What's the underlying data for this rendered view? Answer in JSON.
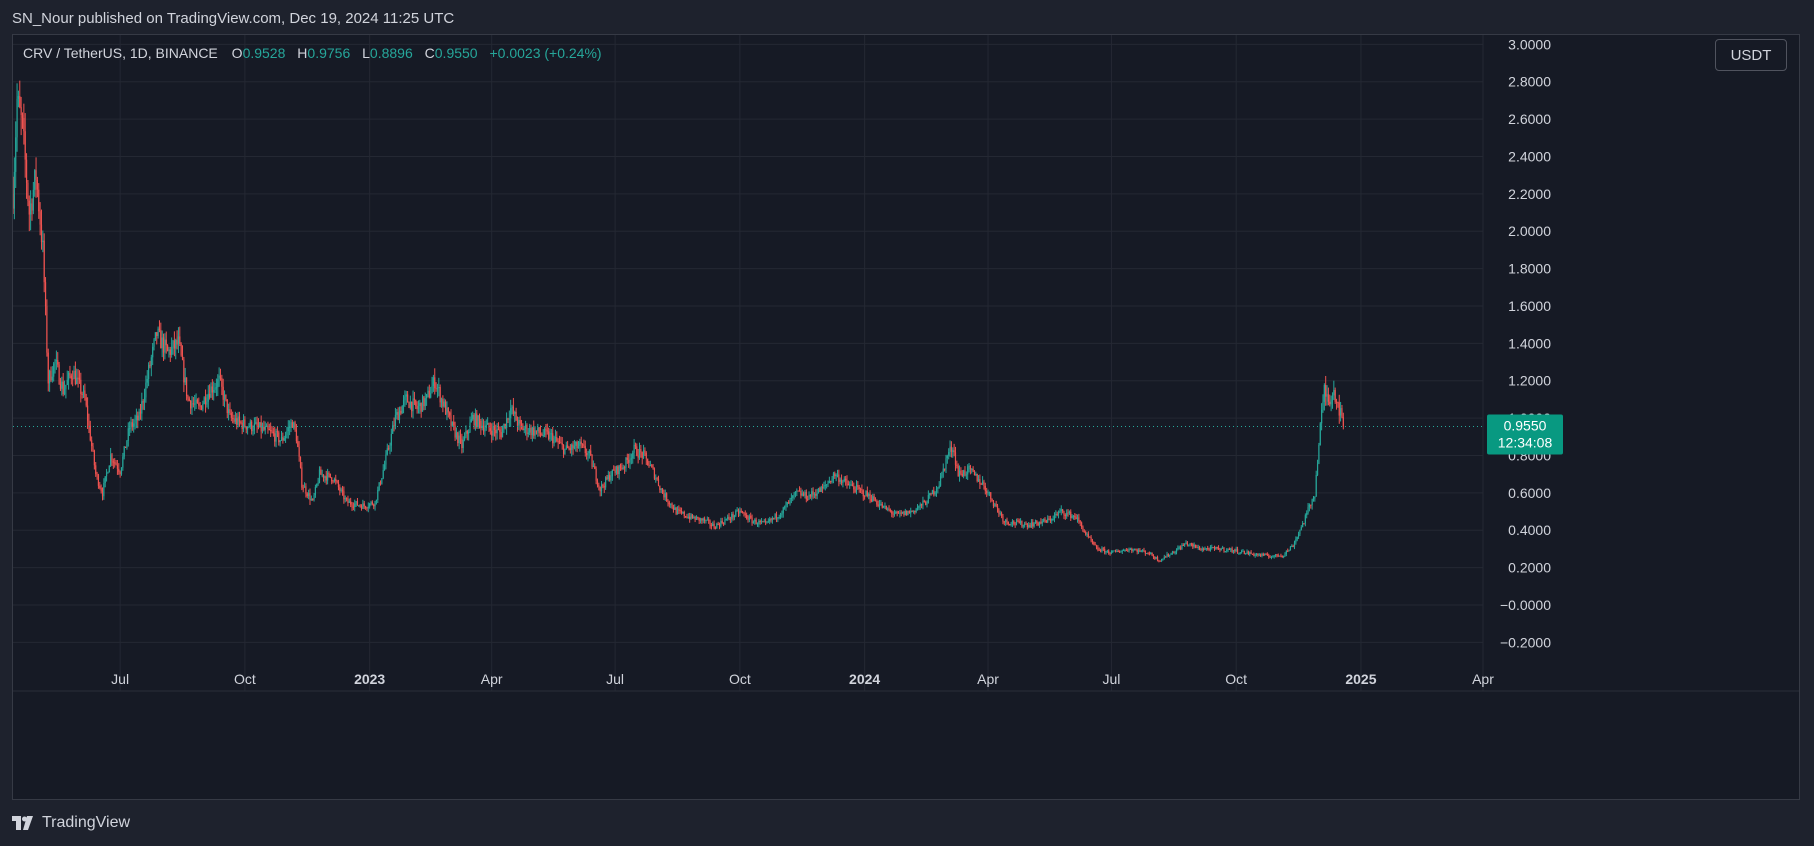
{
  "header": {
    "published_line": "SN_Nour published on TradingView.com, Dec 19, 2024 11:25 UTC"
  },
  "legend": {
    "symbol": "CRV / TetherUS, 1D, BINANCE",
    "o_label": "O",
    "o_value": "0.9528",
    "h_label": "H",
    "h_value": "0.9756",
    "l_label": "L",
    "l_value": "0.8896",
    "c_label": "C",
    "c_value": "0.9550",
    "change": "+0.0023 (+0.24%)"
  },
  "currency_button": "USDT",
  "price_label": {
    "price": "0.9550",
    "countdown": "12:34:08"
  },
  "footer": {
    "brand": "TradingView"
  },
  "colors": {
    "up": "#26a69a",
    "down": "#ef5350",
    "grid": "#242833",
    "axis_text": "#d1d4dc",
    "background": "#161a25",
    "last_price": "#089981"
  },
  "chart_data": {
    "type": "candlestick",
    "symbol": "CRV/USDT",
    "interval": "1D",
    "exchange": "BINANCE",
    "y_axis": {
      "ticks": [
        "3.0000",
        "2.8000",
        "2.6000",
        "2.4000",
        "2.2000",
        "2.0000",
        "1.8000",
        "1.6000",
        "1.4000",
        "1.2000",
        "1.0000",
        "0.8000",
        "0.6000",
        "0.4000",
        "0.2000",
        "−0.0000",
        "−0.2000"
      ],
      "tick_values": [
        3.0,
        2.8,
        2.6,
        2.4,
        2.2,
        2.0,
        1.8,
        1.6,
        1.4,
        1.2,
        1.0,
        0.8,
        0.6,
        0.4,
        0.2,
        0.0,
        -0.2
      ],
      "range": [
        -0.3,
        3.05
      ]
    },
    "x_axis": {
      "ticks": [
        {
          "label": "Jul",
          "date": "2022-07-01",
          "bold": false
        },
        {
          "label": "Oct",
          "date": "2022-10-01",
          "bold": false
        },
        {
          "label": "2023",
          "date": "2023-01-01",
          "bold": true
        },
        {
          "label": "Apr",
          "date": "2023-04-01",
          "bold": false
        },
        {
          "label": "Jul",
          "date": "2023-07-01",
          "bold": false
        },
        {
          "label": "Oct",
          "date": "2023-10-01",
          "bold": false
        },
        {
          "label": "2024",
          "date": "2024-01-01",
          "bold": true
        },
        {
          "label": "Apr",
          "date": "2024-04-01",
          "bold": false
        },
        {
          "label": "Jul",
          "date": "2024-07-01",
          "bold": false
        },
        {
          "label": "Oct",
          "date": "2024-10-01",
          "bold": false
        },
        {
          "label": "2025",
          "date": "2025-01-01",
          "bold": true
        },
        {
          "label": "Apr",
          "date": "2025-04-01",
          "bold": false
        }
      ],
      "range": [
        "2022-04-13",
        "2025-04-01"
      ]
    },
    "last_price": 0.955,
    "grid": true,
    "approx_close_path": [
      [
        "2022-04-13",
        2.2
      ],
      [
        "2022-04-16",
        2.7
      ],
      [
        "2022-04-20",
        2.55
      ],
      [
        "2022-04-25",
        2.1
      ],
      [
        "2022-04-30",
        2.3
      ],
      [
        "2022-05-05",
        1.9
      ],
      [
        "2022-05-09",
        1.2
      ],
      [
        "2022-05-14",
        1.3
      ],
      [
        "2022-05-20",
        1.15
      ],
      [
        "2022-05-27",
        1.25
      ],
      [
        "2022-06-05",
        1.1
      ],
      [
        "2022-06-13",
        0.7
      ],
      [
        "2022-06-18",
        0.6
      ],
      [
        "2022-06-24",
        0.8
      ],
      [
        "2022-07-01",
        0.72
      ],
      [
        "2022-07-08",
        0.95
      ],
      [
        "2022-07-15",
        1.0
      ],
      [
        "2022-07-22",
        1.25
      ],
      [
        "2022-07-28",
        1.45
      ],
      [
        "2022-08-05",
        1.35
      ],
      [
        "2022-08-13",
        1.4
      ],
      [
        "2022-08-20",
        1.1
      ],
      [
        "2022-08-28",
        1.05
      ],
      [
        "2022-09-05",
        1.15
      ],
      [
        "2022-09-12",
        1.2
      ],
      [
        "2022-09-20",
        1.0
      ],
      [
        "2022-09-28",
        0.97
      ],
      [
        "2022-10-10",
        0.95
      ],
      [
        "2022-10-20",
        0.92
      ],
      [
        "2022-10-28",
        0.88
      ],
      [
        "2022-11-05",
        0.98
      ],
      [
        "2022-11-08",
        0.9
      ],
      [
        "2022-11-12",
        0.65
      ],
      [
        "2022-11-20",
        0.55
      ],
      [
        "2022-11-25",
        0.7
      ],
      [
        "2022-12-05",
        0.68
      ],
      [
        "2022-12-15",
        0.55
      ],
      [
        "2022-12-28",
        0.53
      ],
      [
        "2023-01-05",
        0.55
      ],
      [
        "2023-01-12",
        0.75
      ],
      [
        "2023-01-20",
        1.0
      ],
      [
        "2023-01-28",
        1.1
      ],
      [
        "2023-02-05",
        1.05
      ],
      [
        "2023-02-12",
        1.1
      ],
      [
        "2023-02-18",
        1.2
      ],
      [
        "2023-02-23",
        1.1
      ],
      [
        "2023-03-03",
        0.95
      ],
      [
        "2023-03-10",
        0.85
      ],
      [
        "2023-03-18",
        1.0
      ],
      [
        "2023-03-28",
        0.95
      ],
      [
        "2023-04-08",
        0.92
      ],
      [
        "2023-04-15",
        1.05
      ],
      [
        "2023-04-22",
        0.95
      ],
      [
        "2023-05-02",
        0.93
      ],
      [
        "2023-05-15",
        0.9
      ],
      [
        "2023-05-25",
        0.83
      ],
      [
        "2023-06-05",
        0.85
      ],
      [
        "2023-06-12",
        0.8
      ],
      [
        "2023-06-20",
        0.62
      ],
      [
        "2023-06-28",
        0.7
      ],
      [
        "2023-07-08",
        0.75
      ],
      [
        "2023-07-15",
        0.83
      ],
      [
        "2023-07-22",
        0.8
      ],
      [
        "2023-07-30",
        0.7
      ],
      [
        "2023-08-05",
        0.6
      ],
      [
        "2023-08-15",
        0.5
      ],
      [
        "2023-08-25",
        0.47
      ],
      [
        "2023-09-05",
        0.45
      ],
      [
        "2023-09-12",
        0.42
      ],
      [
        "2023-09-22",
        0.46
      ],
      [
        "2023-10-01",
        0.5
      ],
      [
        "2023-10-10",
        0.45
      ],
      [
        "2023-10-20",
        0.43
      ],
      [
        "2023-11-01",
        0.5
      ],
      [
        "2023-11-12",
        0.6
      ],
      [
        "2023-11-20",
        0.58
      ],
      [
        "2023-12-01",
        0.62
      ],
      [
        "2023-12-10",
        0.7
      ],
      [
        "2023-12-18",
        0.65
      ],
      [
        "2023-12-26",
        0.62
      ],
      [
        "2024-01-05",
        0.58
      ],
      [
        "2024-01-15",
        0.52
      ],
      [
        "2024-01-25",
        0.48
      ],
      [
        "2024-02-05",
        0.5
      ],
      [
        "2024-02-15",
        0.55
      ],
      [
        "2024-02-25",
        0.65
      ],
      [
        "2024-03-02",
        0.8
      ],
      [
        "2024-03-06",
        0.85
      ],
      [
        "2024-03-10",
        0.7
      ],
      [
        "2024-03-18",
        0.72
      ],
      [
        "2024-03-28",
        0.65
      ],
      [
        "2024-04-05",
        0.55
      ],
      [
        "2024-04-13",
        0.45
      ],
      [
        "2024-04-20",
        0.44
      ],
      [
        "2024-05-01",
        0.43
      ],
      [
        "2024-05-15",
        0.45
      ],
      [
        "2024-05-25",
        0.5
      ],
      [
        "2024-06-05",
        0.47
      ],
      [
        "2024-06-12",
        0.38
      ],
      [
        "2024-06-20",
        0.3
      ],
      [
        "2024-07-01",
        0.28
      ],
      [
        "2024-07-15",
        0.3
      ],
      [
        "2024-07-28",
        0.28
      ],
      [
        "2024-08-05",
        0.24
      ],
      [
        "2024-08-15",
        0.28
      ],
      [
        "2024-08-25",
        0.33
      ],
      [
        "2024-09-05",
        0.3
      ],
      [
        "2024-09-20",
        0.3
      ],
      [
        "2024-10-01",
        0.29
      ],
      [
        "2024-10-15",
        0.27
      ],
      [
        "2024-10-28",
        0.26
      ],
      [
        "2024-11-05",
        0.27
      ],
      [
        "2024-11-12",
        0.32
      ],
      [
        "2024-11-20",
        0.45
      ],
      [
        "2024-11-28",
        0.6
      ],
      [
        "2024-12-02",
        0.95
      ],
      [
        "2024-12-05",
        1.15
      ],
      [
        "2024-12-08",
        1.1
      ],
      [
        "2024-12-12",
        1.15
      ],
      [
        "2024-12-16",
        1.05
      ],
      [
        "2024-12-19",
        0.955
      ]
    ]
  }
}
